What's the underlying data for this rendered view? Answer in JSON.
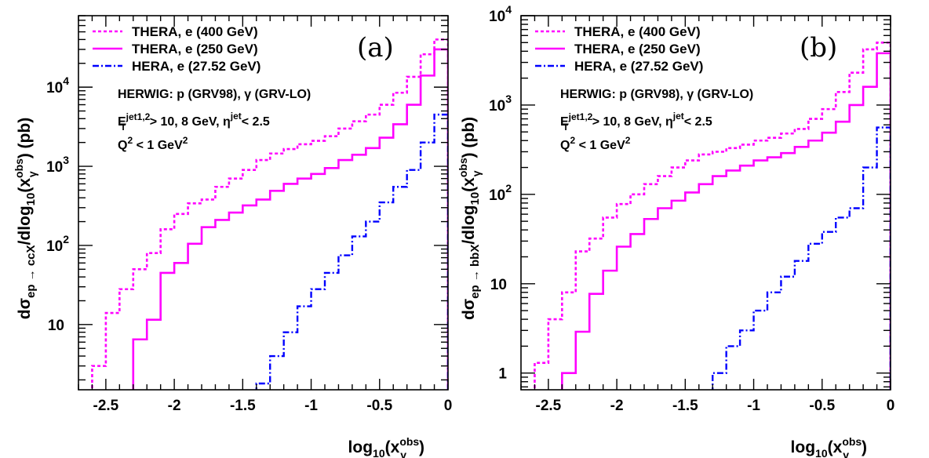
{
  "chart_data": [
    {
      "type": "line",
      "panel_label": "(a)",
      "xlabel": "log10(xγobs)",
      "ylabel": "dσep→ccX/dlog10(xγobs) (pb)",
      "xlim": [
        -2.7,
        0
      ],
      "ylim": [
        1.5,
        80000
      ],
      "yscale": "log",
      "xticks": [
        "-2.5",
        "-2",
        "-1.5",
        "-1",
        "-0.5",
        "0"
      ],
      "yticks": [
        "10",
        "10^2",
        "10^3",
        "10^4"
      ],
      "legend": [
        {
          "label": "THERA, e (400 GeV)",
          "color": "#ff00ff",
          "style": "dotted"
        },
        {
          "label": "THERA, e (250 GeV)",
          "color": "#ff00ff",
          "style": "solid"
        },
        {
          "label": "HERA, e (27.52 GeV)",
          "color": "#0000ff",
          "style": "dashdot"
        }
      ],
      "annotations": [
        "HERWIG: p (GRV98), γ (GRV-LO)",
        "ETjet1,2> 10, 8 GeV, ηjet< 2.5",
        "Q2 < 1 GeV2"
      ],
      "series": [
        {
          "name": "THERA, e (400 GeV)",
          "bin_width": 0.1,
          "x": [
            -2.6,
            -2.5,
            -2.4,
            -2.3,
            -2.2,
            -2.1,
            -2.0,
            -1.9,
            -1.8,
            -1.7,
            -1.6,
            -1.5,
            -1.4,
            -1.3,
            -1.2,
            -1.1,
            -1.0,
            -0.9,
            -0.8,
            -0.7,
            -0.6,
            -0.5,
            -0.4,
            -0.3,
            -0.2,
            -0.1
          ],
          "y": [
            3,
            14,
            28,
            50,
            80,
            160,
            250,
            340,
            380,
            550,
            700,
            900,
            1200,
            1450,
            1650,
            1900,
            2100,
            2400,
            3000,
            3700,
            4500,
            6000,
            8500,
            13500,
            26000,
            40000
          ]
        },
        {
          "name": "THERA, e (250 GeV)",
          "bin_width": 0.1,
          "x": [
            -2.3,
            -2.2,
            -2.1,
            -2.0,
            -1.9,
            -1.8,
            -1.7,
            -1.6,
            -1.5,
            -1.4,
            -1.3,
            -1.2,
            -1.1,
            -1.0,
            -0.9,
            -0.8,
            -0.7,
            -0.6,
            -0.5,
            -0.4,
            -0.3,
            -0.2,
            -0.1
          ],
          "y": [
            6.5,
            11.5,
            45,
            60,
            105,
            170,
            210,
            260,
            320,
            380,
            490,
            600,
            700,
            800,
            950,
            1200,
            1400,
            1700,
            2300,
            3400,
            6000,
            14000,
            30000
          ]
        },
        {
          "name": "HERA, e (27.52 GeV)",
          "bin_width": 0.1,
          "x": [
            -1.4,
            -1.3,
            -1.2,
            -1.1,
            -1.0,
            -0.9,
            -0.8,
            -0.7,
            -0.6,
            -0.5,
            -0.4,
            -0.3,
            -0.2,
            -0.1
          ],
          "y": [
            1.8,
            4,
            8,
            17,
            28,
            45,
            75,
            130,
            200,
            350,
            550,
            900,
            2000,
            4500
          ]
        }
      ]
    },
    {
      "type": "line",
      "panel_label": "(b)",
      "xlabel": "log10(xγobs)",
      "ylabel": "dσep→bbX/dlog10(xγobs) (pb)",
      "xlim": [
        -2.7,
        0
      ],
      "ylim": [
        0.65,
        10000
      ],
      "yscale": "log",
      "xticks": [
        "-2.5",
        "-2",
        "-1.5",
        "-1",
        "-0.5",
        "0"
      ],
      "yticks": [
        "1",
        "10",
        "10^2",
        "10^3",
        "10^4"
      ],
      "legend": [
        {
          "label": "THERA, e (400 GeV)",
          "color": "#ff00ff",
          "style": "dotted"
        },
        {
          "label": "THERA, e (250 GeV)",
          "color": "#ff00ff",
          "style": "solid"
        },
        {
          "label": "HERA, e (27.52 GeV)",
          "color": "#0000ff",
          "style": "dashdot"
        }
      ],
      "annotations": [
        "HERWIG: p (GRV98), γ (GRV-LO)",
        "ETjet1,2> 10, 8 GeV, ηjet< 2.5",
        "Q2 < 1 GeV2"
      ],
      "series": [
        {
          "name": "THERA, e (400 GeV)",
          "bin_width": 0.1,
          "x": [
            -2.6,
            -2.5,
            -2.4,
            -2.3,
            -2.2,
            -2.1,
            -2.0,
            -1.9,
            -1.8,
            -1.7,
            -1.6,
            -1.5,
            -1.4,
            -1.3,
            -1.2,
            -1.1,
            -1.0,
            -0.9,
            -0.8,
            -0.7,
            -0.6,
            -0.5,
            -0.4,
            -0.3,
            -0.2,
            -0.1
          ],
          "y": [
            1.3,
            4,
            8,
            23,
            32,
            55,
            78,
            100,
            130,
            160,
            200,
            240,
            280,
            300,
            330,
            360,
            400,
            430,
            480,
            540,
            700,
            900,
            1400,
            2300,
            4200,
            5000
          ]
        },
        {
          "name": "THERA, e (250 GeV)",
          "bin_width": 0.1,
          "x": [
            -2.4,
            -2.3,
            -2.2,
            -2.1,
            -2.0,
            -1.9,
            -1.8,
            -1.7,
            -1.6,
            -1.5,
            -1.4,
            -1.3,
            -1.2,
            -1.1,
            -1.0,
            -0.9,
            -0.8,
            -0.7,
            -0.6,
            -0.5,
            -0.4,
            -0.3,
            -0.2,
            -0.1
          ],
          "y": [
            1,
            2.9,
            7.7,
            14,
            26,
            36,
            53,
            70,
            85,
            105,
            130,
            160,
            185,
            210,
            240,
            260,
            290,
            340,
            400,
            490,
            650,
            1000,
            1600,
            3800
          ]
        },
        {
          "name": "HERA, e (27.52 GeV)",
          "bin_width": 0.1,
          "x": [
            -1.3,
            -1.2,
            -1.1,
            -1.0,
            -0.9,
            -0.8,
            -0.7,
            -0.6,
            -0.5,
            -0.4,
            -0.3,
            -0.2,
            -0.1
          ],
          "y": [
            1,
            2,
            3,
            5,
            8,
            12,
            18,
            28,
            38,
            55,
            70,
            200,
            560
          ]
        }
      ]
    }
  ]
}
